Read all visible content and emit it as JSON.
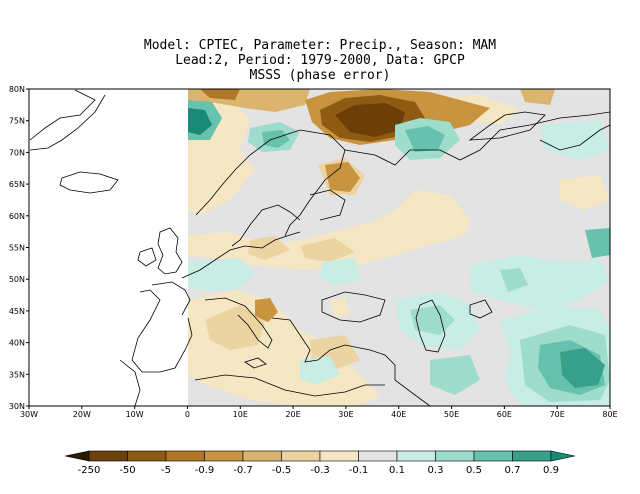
{
  "title_lines": [
    "Model: CPTEC, Parameter: Precip., Season: MAM",
    "Lead:2, Period: 1979-2000, Data: GPCP",
    "MSSS (phase error)"
  ],
  "map": {
    "lon_range": [
      -30,
      80
    ],
    "lat_range": [
      30,
      80
    ],
    "no_data_region": "west of 0 (ocean / not analysed)",
    "lon_ticks": [
      "30W",
      "20W",
      "10W",
      "0",
      "10E",
      "20E",
      "30E",
      "40E",
      "50E",
      "60E",
      "70E",
      "80E"
    ],
    "lat_ticks": [
      "30N",
      "35N",
      "40N",
      "45N",
      "50N",
      "55N",
      "60N",
      "65N",
      "70N",
      "75N",
      "80N"
    ]
  },
  "colorbar": {
    "labels": [
      "-250",
      "-50",
      "-5",
      "-0.9",
      "-0.7",
      "-0.5",
      "-0.3",
      "-0.1",
      "0.1",
      "0.3",
      "0.5",
      "0.7",
      "0.9"
    ],
    "colors": [
      "#2b1a04",
      "#6b3f07",
      "#8f5a12",
      "#b27726",
      "#c9943f",
      "#dbb46f",
      "#ecd3a2",
      "#f5e6c4",
      "#e3e3e3",
      "#c8ede4",
      "#9edccb",
      "#66c1ad",
      "#36a08b",
      "#198a77"
    ]
  }
}
